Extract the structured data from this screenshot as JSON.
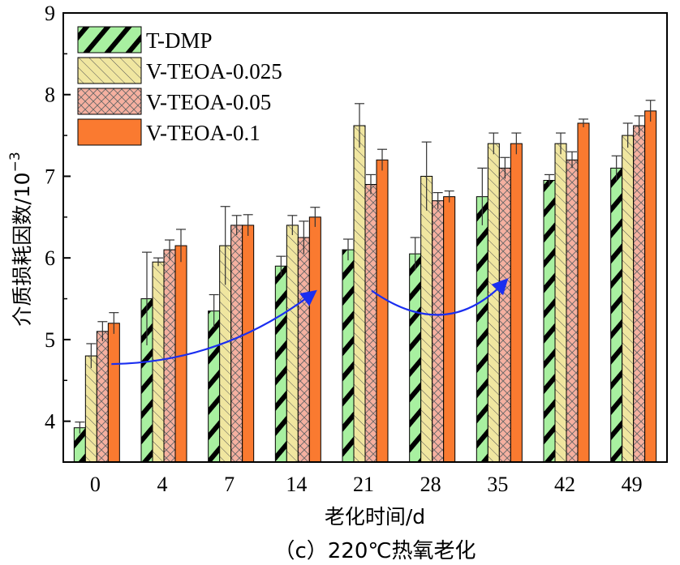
{
  "chart_data": {
    "type": "bar",
    "categories": [
      "0",
      "4",
      "7",
      "14",
      "21",
      "28",
      "35",
      "42",
      "49"
    ],
    "series": [
      {
        "name": "T-DMP",
        "color": "#a8f0a0",
        "pattern": "dense-diagonal",
        "values": [
          3.92,
          5.5,
          5.35,
          5.9,
          6.1,
          6.05,
          6.75,
          6.95,
          7.1
        ],
        "errors": [
          0.07,
          0.57,
          0.2,
          0.12,
          0.13,
          0.2,
          0.35,
          0.07,
          0.15
        ]
      },
      {
        "name": "V-TEOA-0.025",
        "color": "#f0e6a0",
        "pattern": "diagonal-back",
        "values": [
          4.8,
          5.95,
          6.15,
          6.4,
          7.62,
          7.0,
          7.4,
          7.4,
          7.5
        ],
        "errors": [
          0.15,
          0.05,
          0.48,
          0.12,
          0.27,
          0.42,
          0.13,
          0.13,
          0.15
        ]
      },
      {
        "name": "V-TEOA-0.05",
        "color": "#f5b0a0",
        "pattern": "crosshatch",
        "values": [
          5.1,
          6.1,
          6.4,
          6.25,
          6.9,
          6.7,
          7.1,
          7.2,
          7.62
        ],
        "errors": [
          0.12,
          0.12,
          0.12,
          0.2,
          0.12,
          0.1,
          0.13,
          0.1,
          0.12
        ]
      },
      {
        "name": "V-TEOA-0.1",
        "color": "#fa7a30",
        "pattern": "solid",
        "values": [
          5.2,
          6.15,
          6.4,
          6.5,
          7.2,
          6.75,
          7.4,
          7.65,
          7.8
        ],
        "errors": [
          0.13,
          0.2,
          0.13,
          0.12,
          0.13,
          0.07,
          0.13,
          0.05,
          0.13
        ]
      }
    ],
    "xlabel": "老化时间/d",
    "ylabel_main": "介质损耗因数/10",
    "ylabel_exp": "−3",
    "ylim": [
      3.5,
      9
    ],
    "yticks": [
      "4",
      "5",
      "6",
      "7",
      "8",
      "9"
    ],
    "legend_position": "top-left",
    "arrow_color": "#1a2ef0",
    "annotations": [
      "upward curved arrow across days 0–14",
      "U-shaped curved arrow across days 21–35"
    ]
  },
  "caption": "（c）220℃热氧老化"
}
